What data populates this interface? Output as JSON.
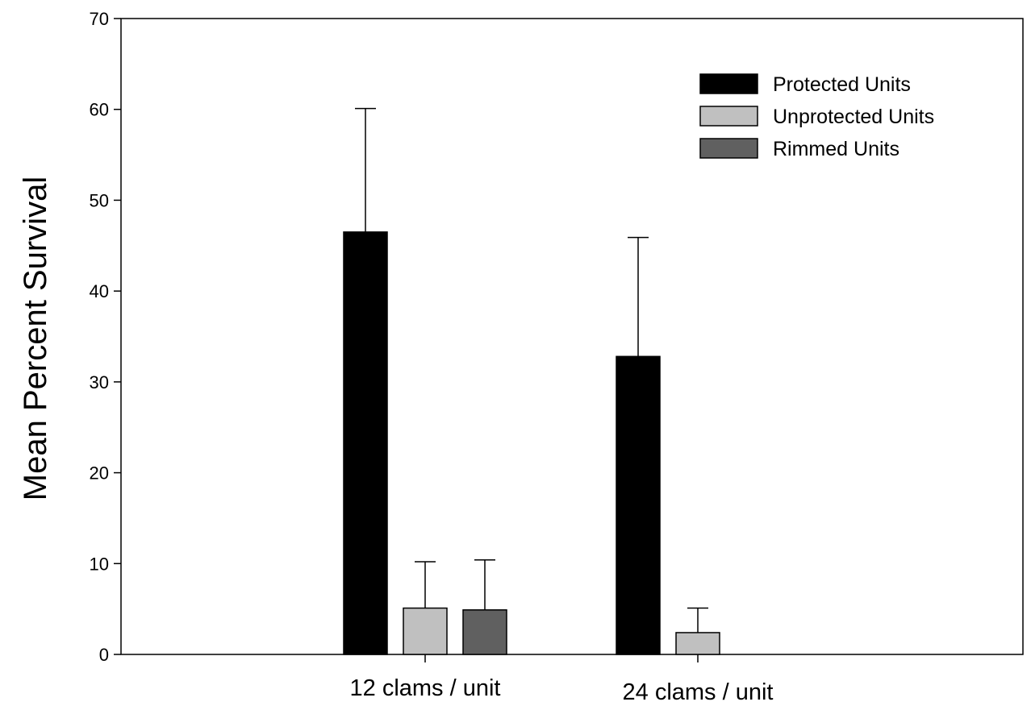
{
  "chart_data": {
    "type": "bar",
    "title": "",
    "xlabel": "",
    "ylabel": "Mean Percent Survival",
    "ylim": [
      0,
      70
    ],
    "yticks": [
      0,
      10,
      20,
      30,
      40,
      50,
      60,
      70
    ],
    "grid": false,
    "legend_position": "top-right",
    "error_bars": "upper",
    "categories": [
      "12 clams / unit",
      "24 clams / unit"
    ],
    "series": [
      {
        "name": "Protected Units",
        "color": "#000000",
        "values": [
          46.5,
          32.8
        ],
        "errors": [
          13.6,
          13.1
        ]
      },
      {
        "name": "Unprotected Units",
        "color": "#c0c0c0",
        "values": [
          5.1,
          2.4
        ],
        "errors": [
          5.1,
          2.7
        ]
      },
      {
        "name": "Rimmed Units",
        "color": "#606060",
        "values": [
          4.9,
          null
        ],
        "errors": [
          5.5,
          null
        ]
      }
    ]
  }
}
